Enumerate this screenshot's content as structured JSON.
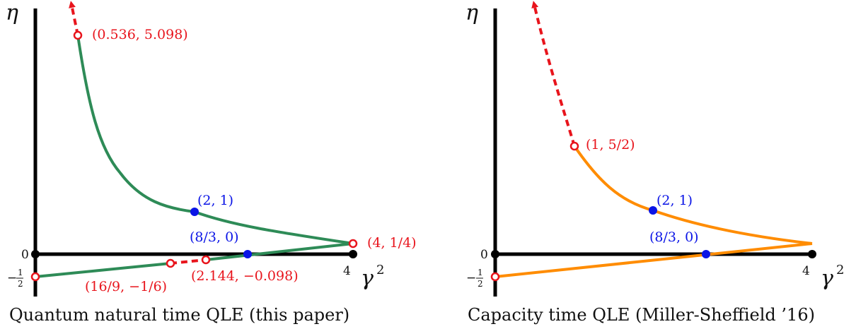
{
  "colors": {
    "axis": "#000000",
    "green_curve": "#2e8b57",
    "orange_curve": "#ff8c00",
    "red": "#e8141c",
    "blue": "#0a14e6"
  },
  "left": {
    "caption": "Quantum natural time QLE (this paper)",
    "y_axis_label": "η",
    "x_axis_label": "γ",
    "x_axis_exponent": "2",
    "tick_zero": "0",
    "tick_four": "4",
    "tick_minus_half_num": "1",
    "tick_minus_half_den": "2",
    "tick_minus_sign": "−",
    "points": {
      "top_open": "(0.536, 5.098)",
      "blue_2_1": "(2, 1)",
      "blue_8_3": "(8/3, 0)",
      "tip_open": "(4, 1/4)",
      "open_16_9": "(16/9, −1/6)",
      "open_2144": "(2.144, −0.098)"
    }
  },
  "right": {
    "caption": "Capacity time QLE (Miller-Sheffield ’16)",
    "y_axis_label": "η",
    "x_axis_label": "γ",
    "x_axis_exponent": "2",
    "tick_zero": "0",
    "tick_four": "4",
    "tick_minus_half_num": "1",
    "tick_minus_half_den": "2",
    "tick_minus_sign": "−",
    "points": {
      "open_1_52": "(1, 5/2)",
      "blue_2_1": "(2, 1)",
      "blue_8_3": "(8/3, 0)"
    }
  }
}
